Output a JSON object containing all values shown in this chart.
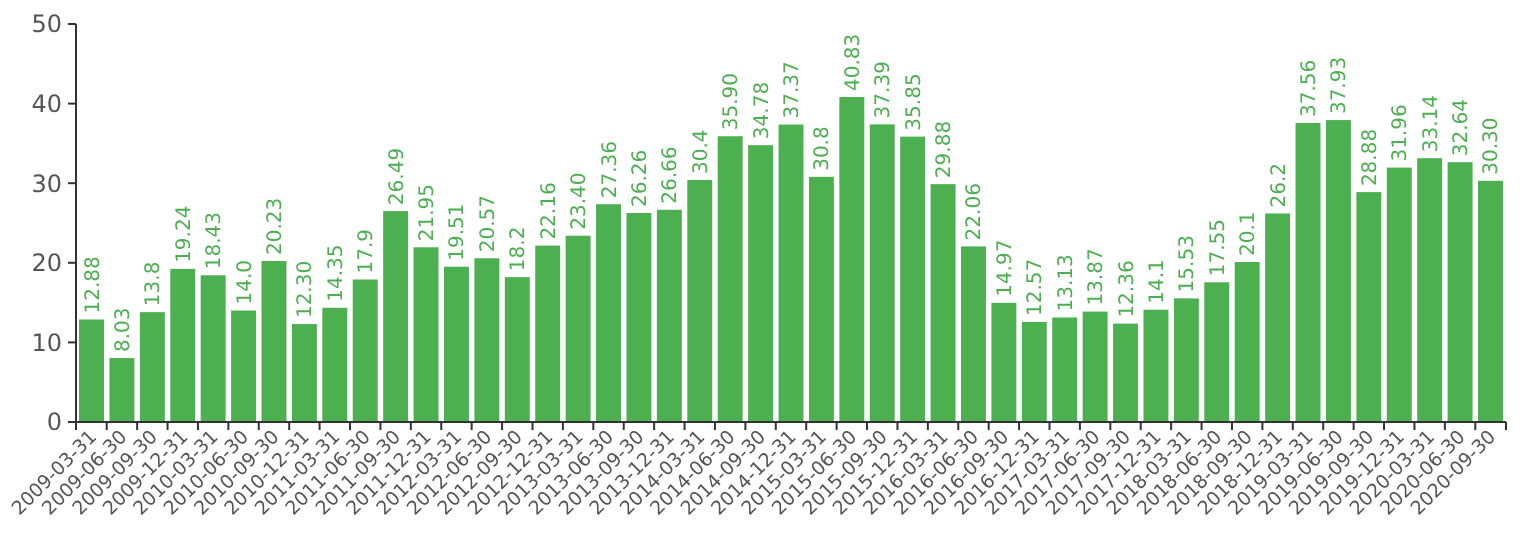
{
  "chart_data": {
    "type": "bar",
    "categories": [
      "2009-03-31",
      "2009-06-30",
      "2009-09-30",
      "2009-12-31",
      "2010-03-31",
      "2010-06-30",
      "2010-09-30",
      "2010-12-31",
      "2011-03-31",
      "2011-06-30",
      "2011-09-30",
      "2011-12-31",
      "2012-03-31",
      "2012-06-30",
      "2012-09-30",
      "2012-12-31",
      "2013-03-31",
      "2013-06-30",
      "2013-09-30",
      "2013-12-31",
      "2014-03-31",
      "2014-06-30",
      "2014-09-30",
      "2014-12-31",
      "2015-03-31",
      "2015-06-30",
      "2015-09-30",
      "2015-12-31",
      "2016-03-31",
      "2016-06-30",
      "2016-09-30",
      "2016-12-31",
      "2017-03-31",
      "2017-06-30",
      "2017-09-30",
      "2017-12-31",
      "2018-03-31",
      "2018-06-30",
      "2018-09-30",
      "2018-12-31",
      "2019-03-31",
      "2019-06-30",
      "2019-09-30",
      "2019-12-31",
      "2020-03-31",
      "2020-06-30",
      "2020-09-30"
    ],
    "values": [
      12.88,
      8.03,
      13.8,
      19.24,
      18.43,
      14.0,
      20.23,
      12.3,
      14.35,
      17.9,
      26.49,
      21.95,
      19.51,
      20.57,
      18.2,
      22.16,
      23.4,
      27.36,
      26.26,
      26.66,
      30.4,
      35.9,
      34.78,
      37.37,
      30.8,
      40.83,
      37.39,
      35.85,
      29.88,
      22.06,
      14.97,
      12.57,
      13.13,
      13.87,
      12.36,
      14.1,
      15.53,
      17.55,
      20.1,
      26.2,
      37.56,
      37.93,
      28.88,
      31.96,
      33.14,
      32.64,
      30.3
    ],
    "value_labels": [
      "12.88",
      "8.03",
      "13.8",
      "19.24",
      "18.43",
      "14.0",
      "20.23",
      "12.30",
      "14.35",
      "17.9",
      "26.49",
      "21.95",
      "19.51",
      "20.57",
      "18.2",
      "22.16",
      "23.40",
      "27.36",
      "26.26",
      "26.66",
      "30.4",
      "35.90",
      "34.78",
      "37.37",
      "30.8",
      "40.83",
      "37.39",
      "35.85",
      "29.88",
      "22.06",
      "14.97",
      "12.57",
      "13.13",
      "13.87",
      "12.36",
      "14.1",
      "15.53",
      "17.55",
      "20.1",
      "26.2",
      "37.56",
      "37.93",
      "28.88",
      "31.96",
      "33.14",
      "32.64",
      "30.30"
    ],
    "color": "#4caf50",
    "ylim": [
      0,
      50
    ],
    "yticks": [
      0,
      10,
      20,
      30,
      40,
      50
    ],
    "grid": false
  }
}
